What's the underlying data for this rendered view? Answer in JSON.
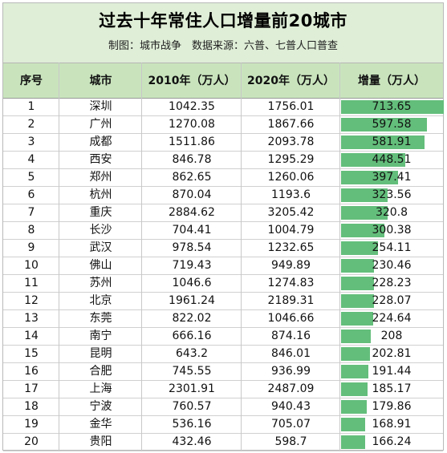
{
  "header": {
    "title": "过去十年常住人口增量前20城市",
    "subtitle": "制图：城市战争　数据来源：六普、七普人口普查"
  },
  "columns": {
    "rank": "序号",
    "city": "城市",
    "pop2010": "2010年（万人）",
    "pop2020": "2020年（万人）",
    "increase": "增量（万人）"
  },
  "chart_data": {
    "type": "table",
    "title": "过去十年常住人口增量前20城市",
    "subtitle": "制图：城市战争　数据来源：六普、七普人口普查",
    "columns": [
      "序号",
      "城市",
      "2010年（万人）",
      "2020年（万人）",
      "增量（万人）"
    ],
    "bar_color": "#63be7b",
    "rows": [
      {
        "rank": "1",
        "city": "深圳",
        "pop2010": "1042.35",
        "pop2020": "1756.01",
        "increase": "713.65"
      },
      {
        "rank": "2",
        "city": "广州",
        "pop2010": "1270.08",
        "pop2020": "1867.66",
        "increase": "597.58"
      },
      {
        "rank": "3",
        "city": "成都",
        "pop2010": "1511.86",
        "pop2020": "2093.78",
        "increase": "581.91"
      },
      {
        "rank": "4",
        "city": "西安",
        "pop2010": "846.78",
        "pop2020": "1295.29",
        "increase": "448.51"
      },
      {
        "rank": "5",
        "city": "郑州",
        "pop2010": "862.65",
        "pop2020": "1260.06",
        "increase": "397.41"
      },
      {
        "rank": "6",
        "city": "杭州",
        "pop2010": "870.04",
        "pop2020": "1193.6",
        "increase": "323.56"
      },
      {
        "rank": "7",
        "city": "重庆",
        "pop2010": "2884.62",
        "pop2020": "3205.42",
        "increase": "320.8"
      },
      {
        "rank": "8",
        "city": "长沙",
        "pop2010": "704.41",
        "pop2020": "1004.79",
        "increase": "300.38"
      },
      {
        "rank": "9",
        "city": "武汉",
        "pop2010": "978.54",
        "pop2020": "1232.65",
        "increase": "254.11"
      },
      {
        "rank": "10",
        "city": "佛山",
        "pop2010": "719.43",
        "pop2020": "949.89",
        "increase": "230.46"
      },
      {
        "rank": "11",
        "city": "苏州",
        "pop2010": "1046.6",
        "pop2020": "1274.83",
        "increase": "228.23"
      },
      {
        "rank": "12",
        "city": "北京",
        "pop2010": "1961.24",
        "pop2020": "2189.31",
        "increase": "228.07"
      },
      {
        "rank": "13",
        "city": "东莞",
        "pop2010": "822.02",
        "pop2020": "1046.66",
        "increase": "224.64"
      },
      {
        "rank": "14",
        "city": "南宁",
        "pop2010": "666.16",
        "pop2020": "874.16",
        "increase": "208"
      },
      {
        "rank": "15",
        "city": "昆明",
        "pop2010": "643.2",
        "pop2020": "846.01",
        "increase": "202.81"
      },
      {
        "rank": "16",
        "city": "合肥",
        "pop2010": "745.55",
        "pop2020": "936.99",
        "increase": "191.44"
      },
      {
        "rank": "17",
        "city": "上海",
        "pop2010": "2301.91",
        "pop2020": "2487.09",
        "increase": "185.17"
      },
      {
        "rank": "18",
        "city": "宁波",
        "pop2010": "760.57",
        "pop2020": "940.43",
        "increase": "179.86"
      },
      {
        "rank": "19",
        "city": "金华",
        "pop2010": "536.16",
        "pop2020": "705.07",
        "increase": "168.91"
      },
      {
        "rank": "20",
        "city": "贵阳",
        "pop2010": "432.46",
        "pop2020": "598.7",
        "increase": "166.24"
      }
    ]
  }
}
